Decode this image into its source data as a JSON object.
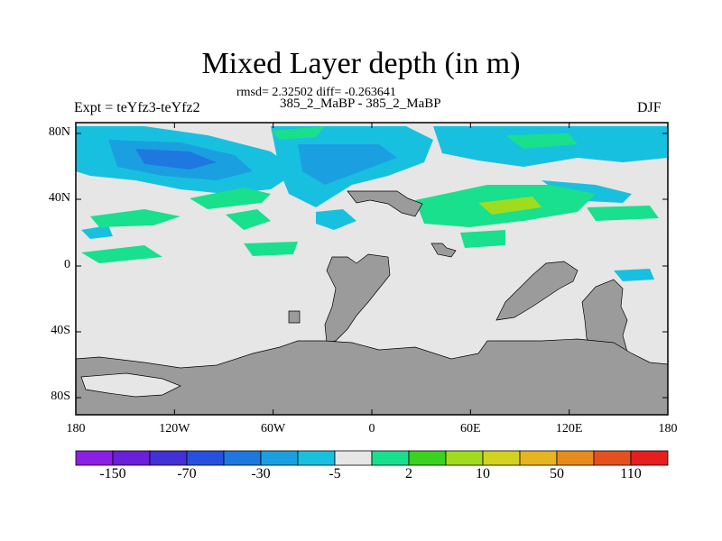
{
  "title": "Mixed Layer depth (in m)",
  "stats_text": "rmsd= 2.32502 diff= -0.263641",
  "case_text": "385_2_MaBP - 385_2_MaBP",
  "expt_text": "Expt = teYfz3-teYfz2",
  "season": "DJF",
  "map": {
    "lat_range": [
      -90,
      90
    ],
    "lon_range": [
      -180,
      180
    ],
    "y_ticks": [
      "80N",
      "40N",
      "0",
      "40S",
      "80S"
    ],
    "x_ticks": [
      "180",
      "120W",
      "60W",
      "0",
      "60E",
      "120E",
      "180"
    ],
    "land_color": "#9b9b9b",
    "ocean_zero_color": "#e6e6e6"
  },
  "colorbar": {
    "colors": [
      "#8c1ee6",
      "#6a1fd9",
      "#4231d6",
      "#2850e0",
      "#1f78e0",
      "#1aa0e0",
      "#18c0e0",
      "#e6e6e6",
      "#18e08c",
      "#3ad21e",
      "#a0dc1e",
      "#d2d21e",
      "#e6b41e",
      "#e68c1e",
      "#e6501e",
      "#e61e1e"
    ],
    "labels": [
      "-150",
      "-70",
      "-30",
      "-5",
      "2",
      "10",
      "50",
      "110"
    ]
  }
}
